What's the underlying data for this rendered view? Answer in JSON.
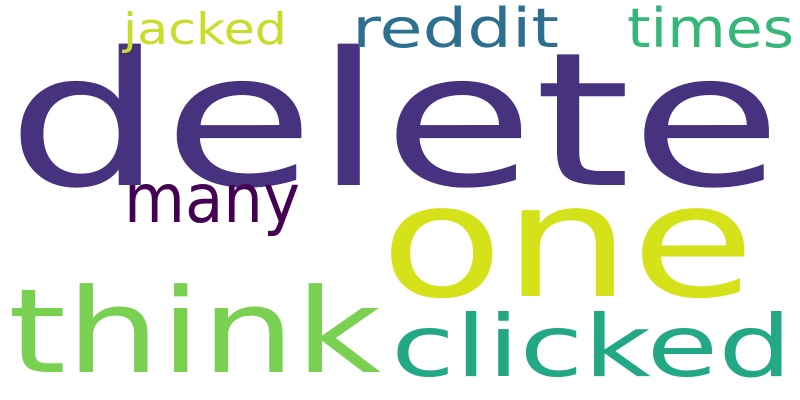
{
  "words": [
    {
      "text": "delete",
      "color": "#46327e"
    },
    {
      "text": "one",
      "color": "#d5e21a"
    },
    {
      "text": "think",
      "color": "#7ad151"
    },
    {
      "text": "clicked",
      "color": "#22a884"
    },
    {
      "text": "many",
      "color": "#440154"
    },
    {
      "text": "reddit",
      "color": "#2d6f8e"
    },
    {
      "text": "times",
      "color": "#35b779"
    },
    {
      "text": "jacked",
      "color": "#c8dd2a"
    }
  ]
}
